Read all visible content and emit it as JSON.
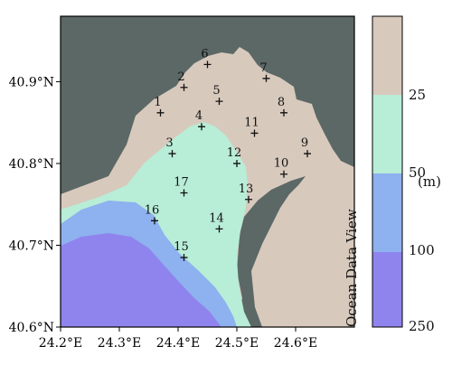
{
  "map": {
    "x_axis": {
      "ticks": [
        "24.2°E",
        "24.3°E",
        "24.4°E",
        "24.5°E",
        "24.6°E"
      ]
    },
    "y_axis": {
      "ticks": [
        "40.9°N",
        "40.8°N",
        "40.7°N",
        "40.6°N"
      ]
    },
    "stations": [
      {
        "label": "1",
        "lon": 24.37,
        "lat": 40.862
      },
      {
        "label": "2",
        "lon": 24.41,
        "lat": 40.893
      },
      {
        "label": "3",
        "lon": 24.39,
        "lat": 40.812
      },
      {
        "label": "4",
        "lon": 24.44,
        "lat": 40.845
      },
      {
        "label": "5",
        "lon": 24.47,
        "lat": 40.876
      },
      {
        "label": "6",
        "lon": 24.45,
        "lat": 40.921
      },
      {
        "label": "7",
        "lon": 24.55,
        "lat": 40.904
      },
      {
        "label": "8",
        "lon": 24.58,
        "lat": 40.862
      },
      {
        "label": "9",
        "lon": 24.62,
        "lat": 40.812
      },
      {
        "label": "10",
        "lon": 24.58,
        "lat": 40.787
      },
      {
        "label": "11",
        "lon": 24.53,
        "lat": 40.837
      },
      {
        "label": "12",
        "lon": 24.5,
        "lat": 40.8
      },
      {
        "label": "13",
        "lon": 24.52,
        "lat": 40.756
      },
      {
        "label": "14",
        "lon": 24.47,
        "lat": 40.72
      },
      {
        "label": "15",
        "lon": 24.41,
        "lat": 40.685
      },
      {
        "label": "16",
        "lon": 24.36,
        "lat": 40.73
      },
      {
        "label": "17",
        "lon": 24.41,
        "lat": 40.764
      }
    ],
    "colors": {
      "land": "#5b6866",
      "depth_0_25": "#d8c9bd",
      "depth_25_50": "#b8edd7",
      "depth_50_100": "#8eb1ef",
      "depth_100_250": "#8f84ee"
    }
  },
  "legend": {
    "labels": [
      "25",
      "50",
      "100",
      "250"
    ],
    "unit": "(m)",
    "credit": "Ocean Data View"
  }
}
